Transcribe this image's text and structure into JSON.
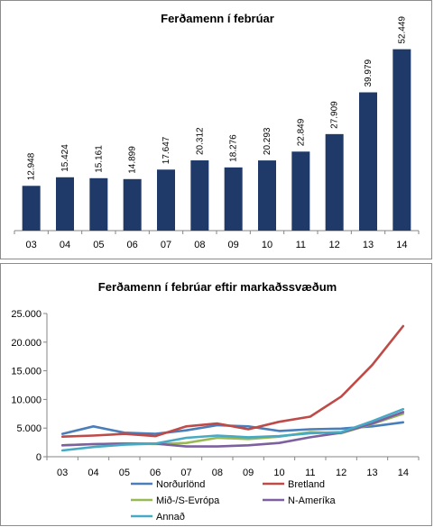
{
  "chart_data": [
    {
      "type": "bar",
      "title": "Ferðamenn í febrúar",
      "categories": [
        "03",
        "04",
        "05",
        "06",
        "07",
        "08",
        "09",
        "10",
        "11",
        "12",
        "13",
        "14"
      ],
      "values": [
        12948,
        15424,
        15161,
        14899,
        17647,
        20312,
        18276,
        20293,
        22849,
        27909,
        39979,
        52449
      ],
      "value_labels": [
        "12.948",
        "15.424",
        "15.161",
        "14.899",
        "17.647",
        "20.312",
        "18.276",
        "20.293",
        "22.849",
        "27.909",
        "39.979",
        "52.449"
      ],
      "bar_color": "#1f3a68",
      "ylim": [
        0,
        56000
      ],
      "grid": false
    },
    {
      "type": "line",
      "title": "Ferðamenn í febrúar eftir markaðssvæðum",
      "categories": [
        "03",
        "04",
        "05",
        "06",
        "07",
        "08",
        "09",
        "10",
        "11",
        "12",
        "13",
        "14"
      ],
      "yticks": [
        "0",
        "5.000",
        "10.000",
        "15.000",
        "20.000",
        "25.000"
      ],
      "ylim": [
        0,
        25000
      ],
      "grid": false,
      "legend_position": "bottom",
      "series": [
        {
          "name": "Norðurlönd",
          "color": "#4a7ebb",
          "values": [
            4000,
            5300,
            4200,
            4000,
            4600,
            5500,
            5300,
            4500,
            4800,
            4900,
            5300,
            6000
          ]
        },
        {
          "name": "Bretland",
          "color": "#be4b48",
          "values": [
            3500,
            3700,
            4000,
            3600,
            5300,
            5800,
            4800,
            6100,
            7000,
            10500,
            16000,
            22800
          ]
        },
        {
          "name": "Mið-/S-Evrópa",
          "color": "#98b954",
          "values": [
            2000,
            2200,
            2300,
            2200,
            2400,
            3300,
            3100,
            3500,
            4300,
            4100,
            5700,
            7500
          ]
        },
        {
          "name": "N-Ameríka",
          "color": "#7d60a0",
          "values": [
            2000,
            2200,
            2300,
            2300,
            1800,
            1800,
            2000,
            2400,
            3400,
            4200,
            5800,
            7800
          ]
        },
        {
          "name": "Annað",
          "color": "#46aac5",
          "values": [
            1100,
            1700,
            2100,
            2300,
            3300,
            3700,
            3400,
            3600,
            4100,
            4300,
            6200,
            8300
          ]
        }
      ]
    }
  ]
}
